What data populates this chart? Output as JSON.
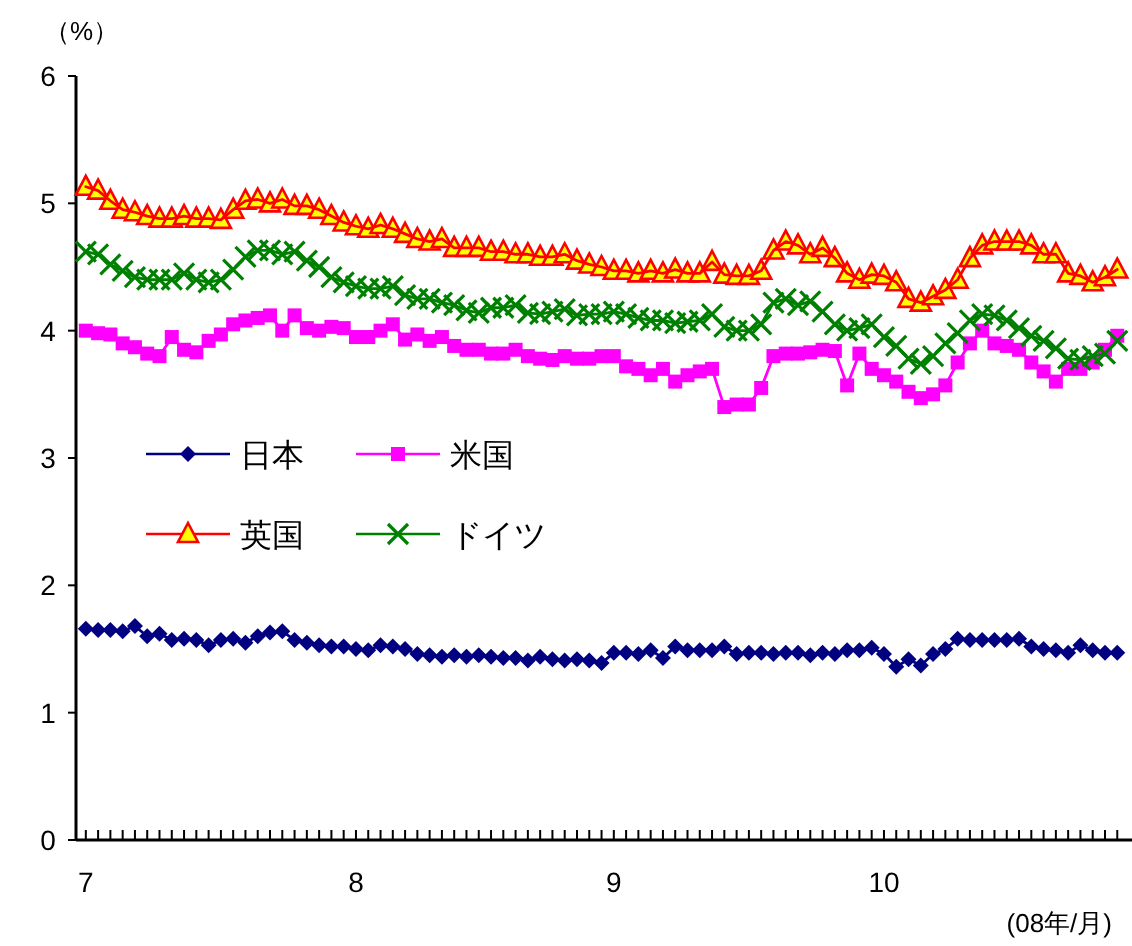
{
  "chart_data": {
    "type": "line",
    "ylabel": "（%）",
    "xlabel": "(08年/月)",
    "categories": [
      "7",
      null,
      null,
      null,
      null,
      null,
      null,
      null,
      null,
      null,
      null,
      null,
      null,
      null,
      null,
      null,
      null,
      null,
      null,
      null,
      null,
      null,
      "8",
      null,
      null,
      null,
      null,
      null,
      null,
      null,
      null,
      null,
      null,
      null,
      null,
      null,
      null,
      null,
      null,
      null,
      null,
      null,
      null,
      "9",
      null,
      null,
      null,
      null,
      null,
      null,
      null,
      null,
      null,
      null,
      null,
      null,
      null,
      null,
      null,
      null,
      null,
      null,
      null,
      null,
      null,
      "10",
      null,
      null,
      null,
      null,
      null,
      null,
      null,
      null,
      null,
      null,
      null,
      null,
      null,
      null,
      null,
      null,
      null,
      null,
      null
    ],
    "ylim": [
      0,
      6
    ],
    "yticks": [
      0,
      1,
      2,
      3,
      4,
      5,
      6
    ],
    "grid": false,
    "legend": "left",
    "series": [
      {
        "name": "日本",
        "color": "#000080",
        "marker": "diamond",
        "values": [
          1.66,
          1.65,
          1.65,
          1.64,
          1.68,
          1.6,
          1.62,
          1.57,
          1.58,
          1.57,
          1.53,
          1.57,
          1.58,
          1.55,
          1.6,
          1.63,
          1.64,
          1.57,
          1.55,
          1.53,
          1.52,
          1.52,
          1.5,
          1.49,
          1.53,
          1.52,
          1.5,
          1.46,
          1.45,
          1.44,
          1.45,
          1.44,
          1.45,
          1.44,
          1.43,
          1.43,
          1.41,
          1.44,
          1.42,
          1.41,
          1.42,
          1.41,
          1.39,
          1.47,
          1.47,
          1.46,
          1.49,
          1.43,
          1.52,
          1.49,
          1.49,
          1.49,
          1.52,
          1.46,
          1.47,
          1.47,
          1.46,
          1.47,
          1.47,
          1.45,
          1.47,
          1.46,
          1.49,
          1.49,
          1.51,
          1.46,
          1.36,
          1.42,
          1.37,
          1.46,
          1.5,
          1.58,
          1.57,
          1.57,
          1.57,
          1.57,
          1.58,
          1.52,
          1.5,
          1.49,
          1.47,
          1.53,
          1.49,
          1.47,
          1.47
        ]
      },
      {
        "name": "米国",
        "color": "#ff00ff",
        "marker": "square",
        "values": [
          4.0,
          3.98,
          3.97,
          3.9,
          3.87,
          3.82,
          3.8,
          3.95,
          3.85,
          3.83,
          3.92,
          3.97,
          4.05,
          4.08,
          4.1,
          4.12,
          4.0,
          4.12,
          4.02,
          4.0,
          4.03,
          4.02,
          3.95,
          3.95,
          4.0,
          4.05,
          3.93,
          3.97,
          3.92,
          3.95,
          3.88,
          3.85,
          3.85,
          3.82,
          3.82,
          3.85,
          3.8,
          3.78,
          3.77,
          3.8,
          3.78,
          3.78,
          3.8,
          3.8,
          3.72,
          3.7,
          3.65,
          3.7,
          3.6,
          3.65,
          3.68,
          3.7,
          3.4,
          3.42,
          3.42,
          3.55,
          3.8,
          3.82,
          3.82,
          3.83,
          3.85,
          3.84,
          3.57,
          3.82,
          3.7,
          3.65,
          3.6,
          3.52,
          3.47,
          3.5,
          3.57,
          3.75,
          3.9,
          4.0,
          3.9,
          3.88,
          3.85,
          3.75,
          3.68,
          3.6,
          3.7,
          3.7,
          3.75,
          3.85,
          3.96
        ]
      },
      {
        "name": "英国",
        "color": "#ff0000",
        "marker": "triangle",
        "values": [
          5.13,
          5.1,
          5.02,
          4.95,
          4.93,
          4.9,
          4.88,
          4.88,
          4.9,
          4.88,
          4.88,
          4.87,
          4.95,
          5.02,
          5.03,
          5.0,
          5.03,
          4.98,
          4.98,
          4.95,
          4.9,
          4.85,
          4.82,
          4.8,
          4.83,
          4.8,
          4.76,
          4.72,
          4.7,
          4.72,
          4.65,
          4.65,
          4.65,
          4.62,
          4.62,
          4.6,
          4.6,
          4.58,
          4.58,
          4.6,
          4.55,
          4.52,
          4.5,
          4.47,
          4.47,
          4.45,
          4.47,
          4.45,
          4.48,
          4.45,
          4.45,
          4.54,
          4.44,
          4.43,
          4.43,
          4.47,
          4.63,
          4.7,
          4.67,
          4.6,
          4.65,
          4.57,
          4.45,
          4.4,
          4.44,
          4.43,
          4.38,
          4.25,
          4.22,
          4.27,
          4.32,
          4.4,
          4.57,
          4.67,
          4.7,
          4.7,
          4.7,
          4.67,
          4.6,
          4.6,
          4.45,
          4.43,
          4.38,
          4.42,
          4.48
        ]
      },
      {
        "name": "ドイツ",
        "color": "#008000",
        "marker": "cross",
        "values": [
          4.62,
          4.6,
          4.52,
          4.47,
          4.42,
          4.4,
          4.4,
          4.4,
          4.45,
          4.4,
          4.38,
          4.4,
          4.48,
          4.58,
          4.63,
          4.63,
          4.6,
          4.62,
          4.55,
          4.5,
          4.42,
          4.38,
          4.35,
          4.33,
          4.33,
          4.35,
          4.28,
          4.25,
          4.25,
          4.22,
          4.2,
          4.16,
          4.14,
          4.18,
          4.18,
          4.2,
          4.14,
          4.13,
          4.15,
          4.17,
          4.12,
          4.13,
          4.13,
          4.15,
          4.13,
          4.1,
          4.08,
          4.08,
          4.06,
          4.07,
          4.08,
          4.13,
          4.03,
          4.0,
          4.0,
          4.05,
          4.22,
          4.25,
          4.2,
          4.23,
          4.15,
          4.05,
          4.0,
          4.02,
          4.05,
          3.95,
          3.88,
          3.78,
          3.74,
          3.8,
          3.9,
          3.98,
          4.08,
          4.13,
          4.12,
          4.08,
          4.02,
          3.96,
          3.92,
          3.86,
          3.78,
          3.77,
          3.8,
          3.82,
          3.92
        ]
      }
    ]
  }
}
